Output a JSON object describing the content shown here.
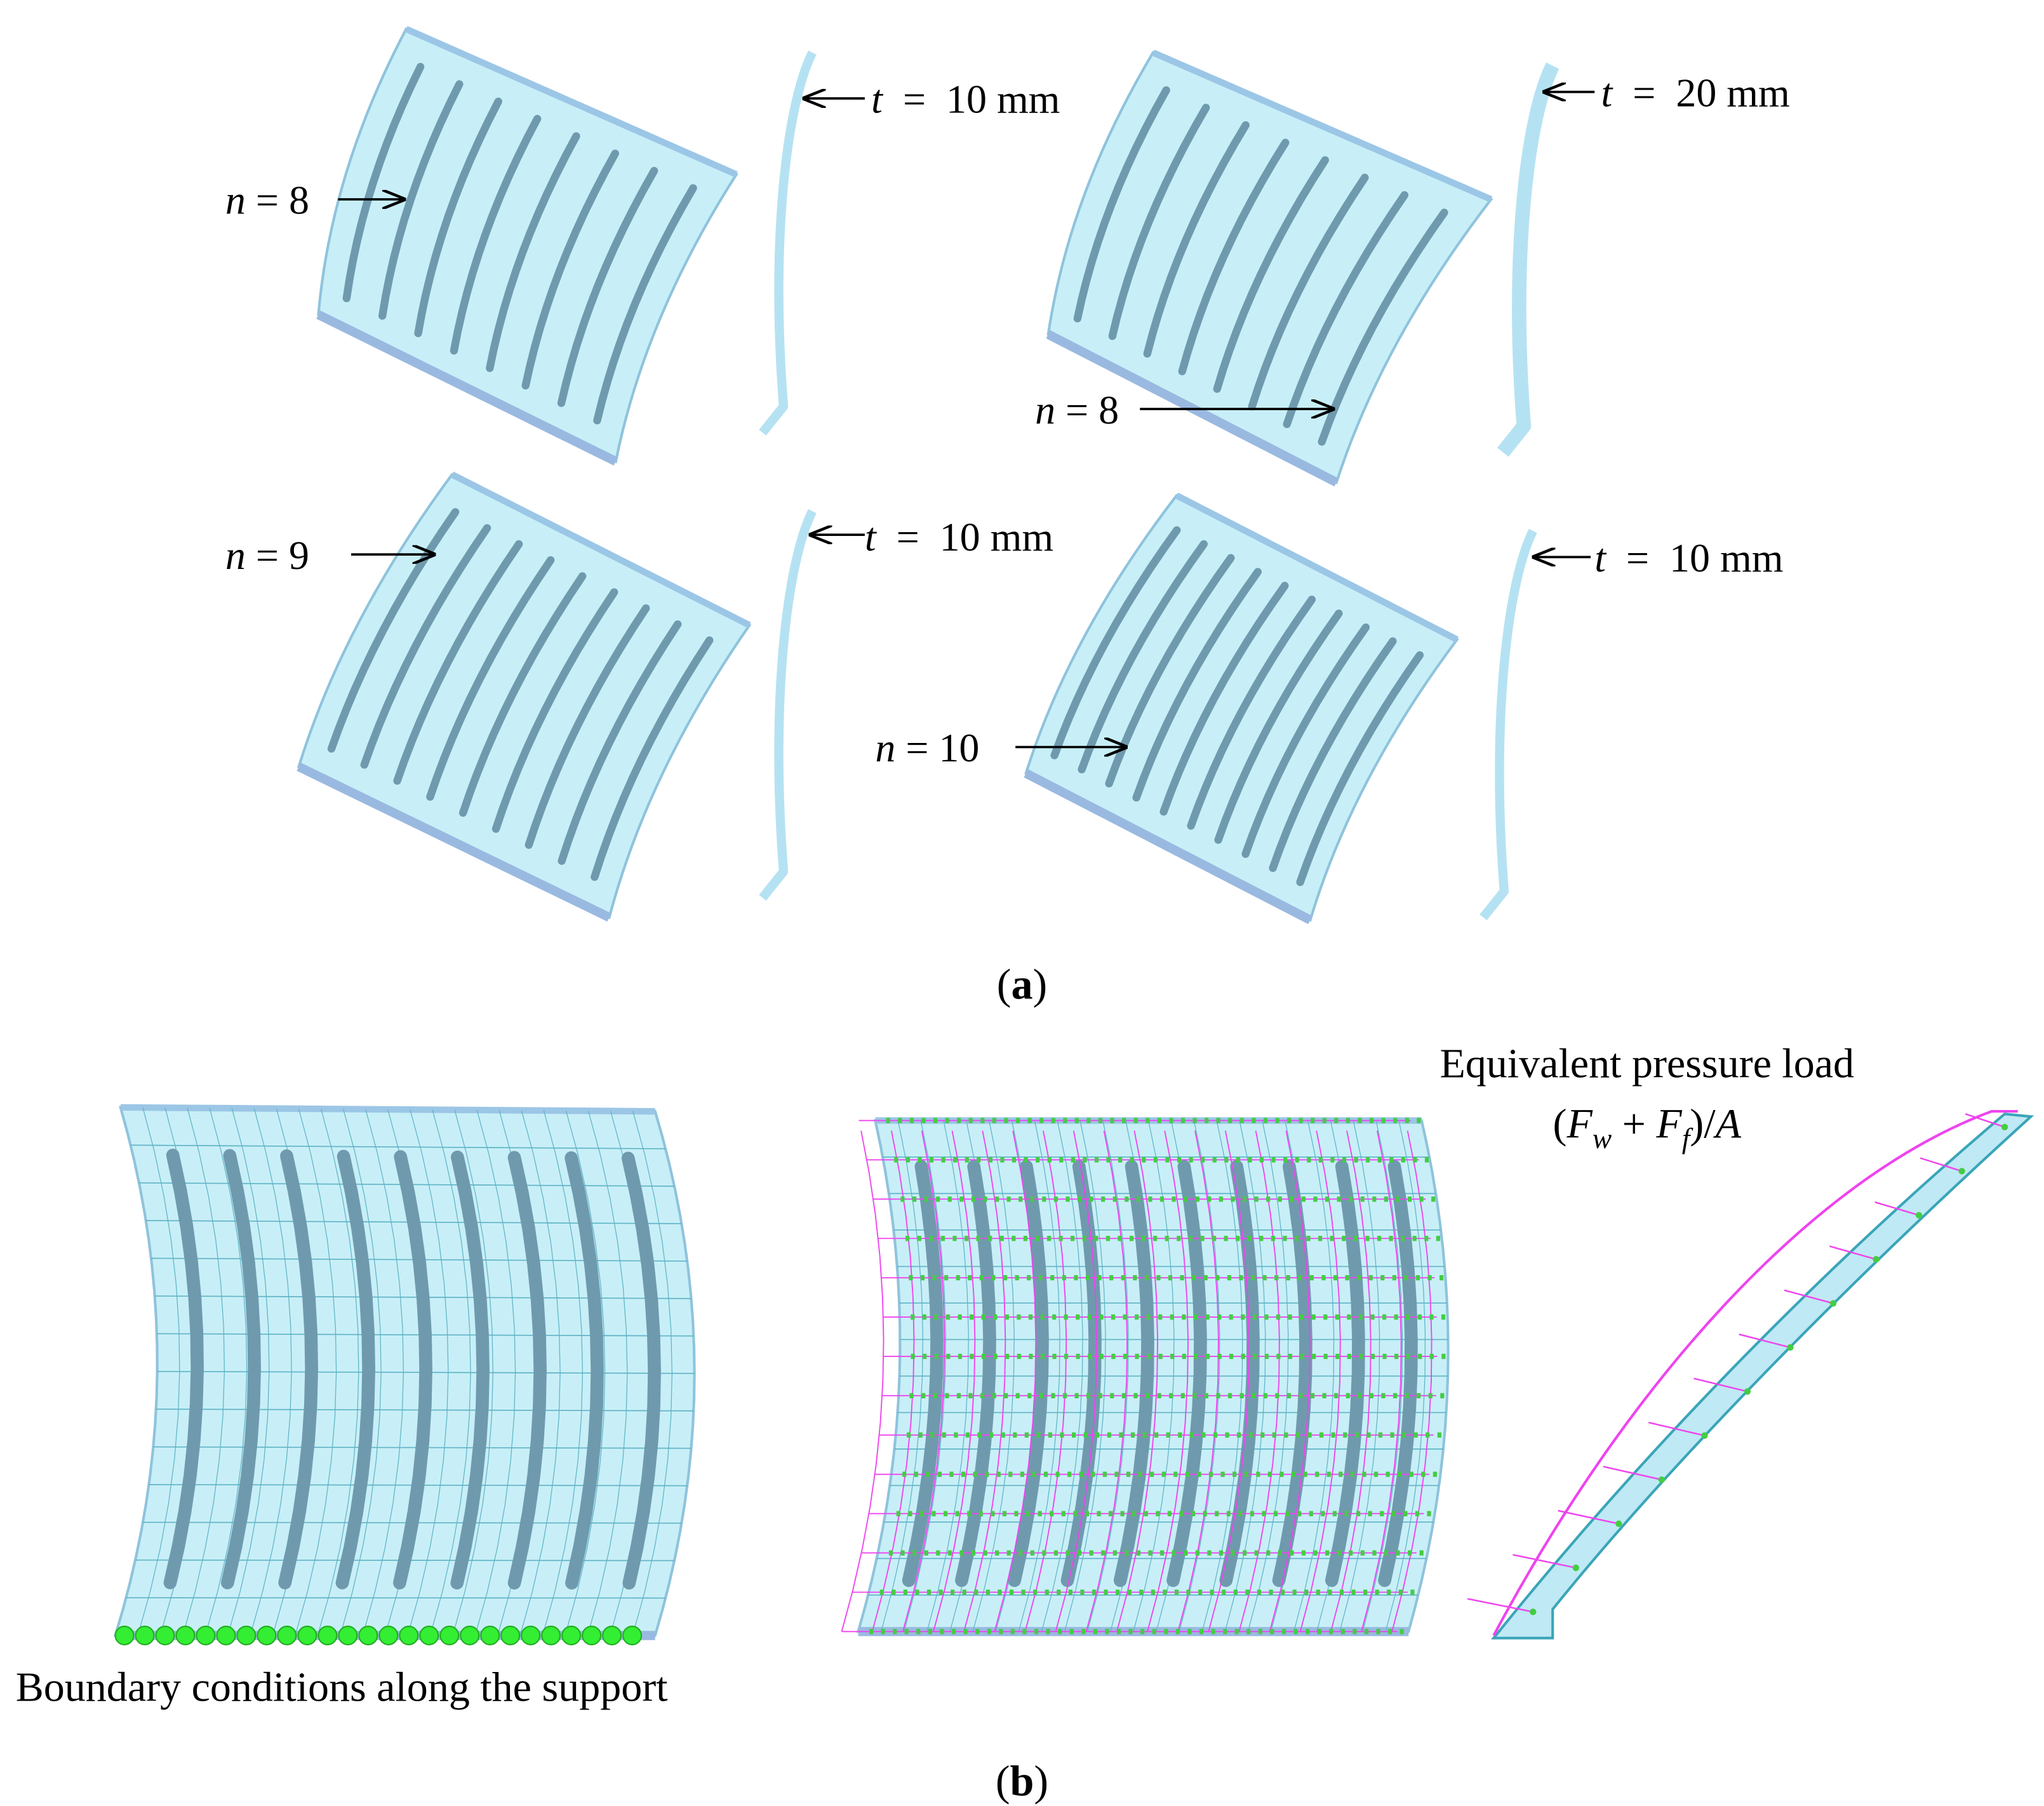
{
  "panel_a": {
    "caption": [
      "(",
      "a",
      ")"
    ],
    "models": [
      {
        "n_label": {
          "symbol": "n",
          "text": "= 8"
        },
        "t_label": {
          "symbol": "t",
          "text": "=  10 mm"
        }
      },
      {
        "n_label": {
          "symbol": "n",
          "text": "= 8"
        },
        "t_label": {
          "symbol": "t",
          "text": "=  20 mm"
        }
      },
      {
        "n_label": {
          "symbol": "n",
          "text": "= 9"
        },
        "t_label": {
          "symbol": "t",
          "text": "=  10 mm"
        }
      },
      {
        "n_label": {
          "symbol": "n",
          "text": "= 10"
        },
        "t_label": {
          "symbol": "t",
          "text": "=  10 mm"
        }
      }
    ]
  },
  "panel_b": {
    "caption": [
      "(",
      "b",
      ")"
    ],
    "support_label": "Boundary conditions along the support",
    "load_label": "Equivalent pressure load",
    "load_formula": [
      "(",
      "F",
      "w",
      " + ",
      "F",
      "f",
      ")/",
      "A"
    ]
  }
}
